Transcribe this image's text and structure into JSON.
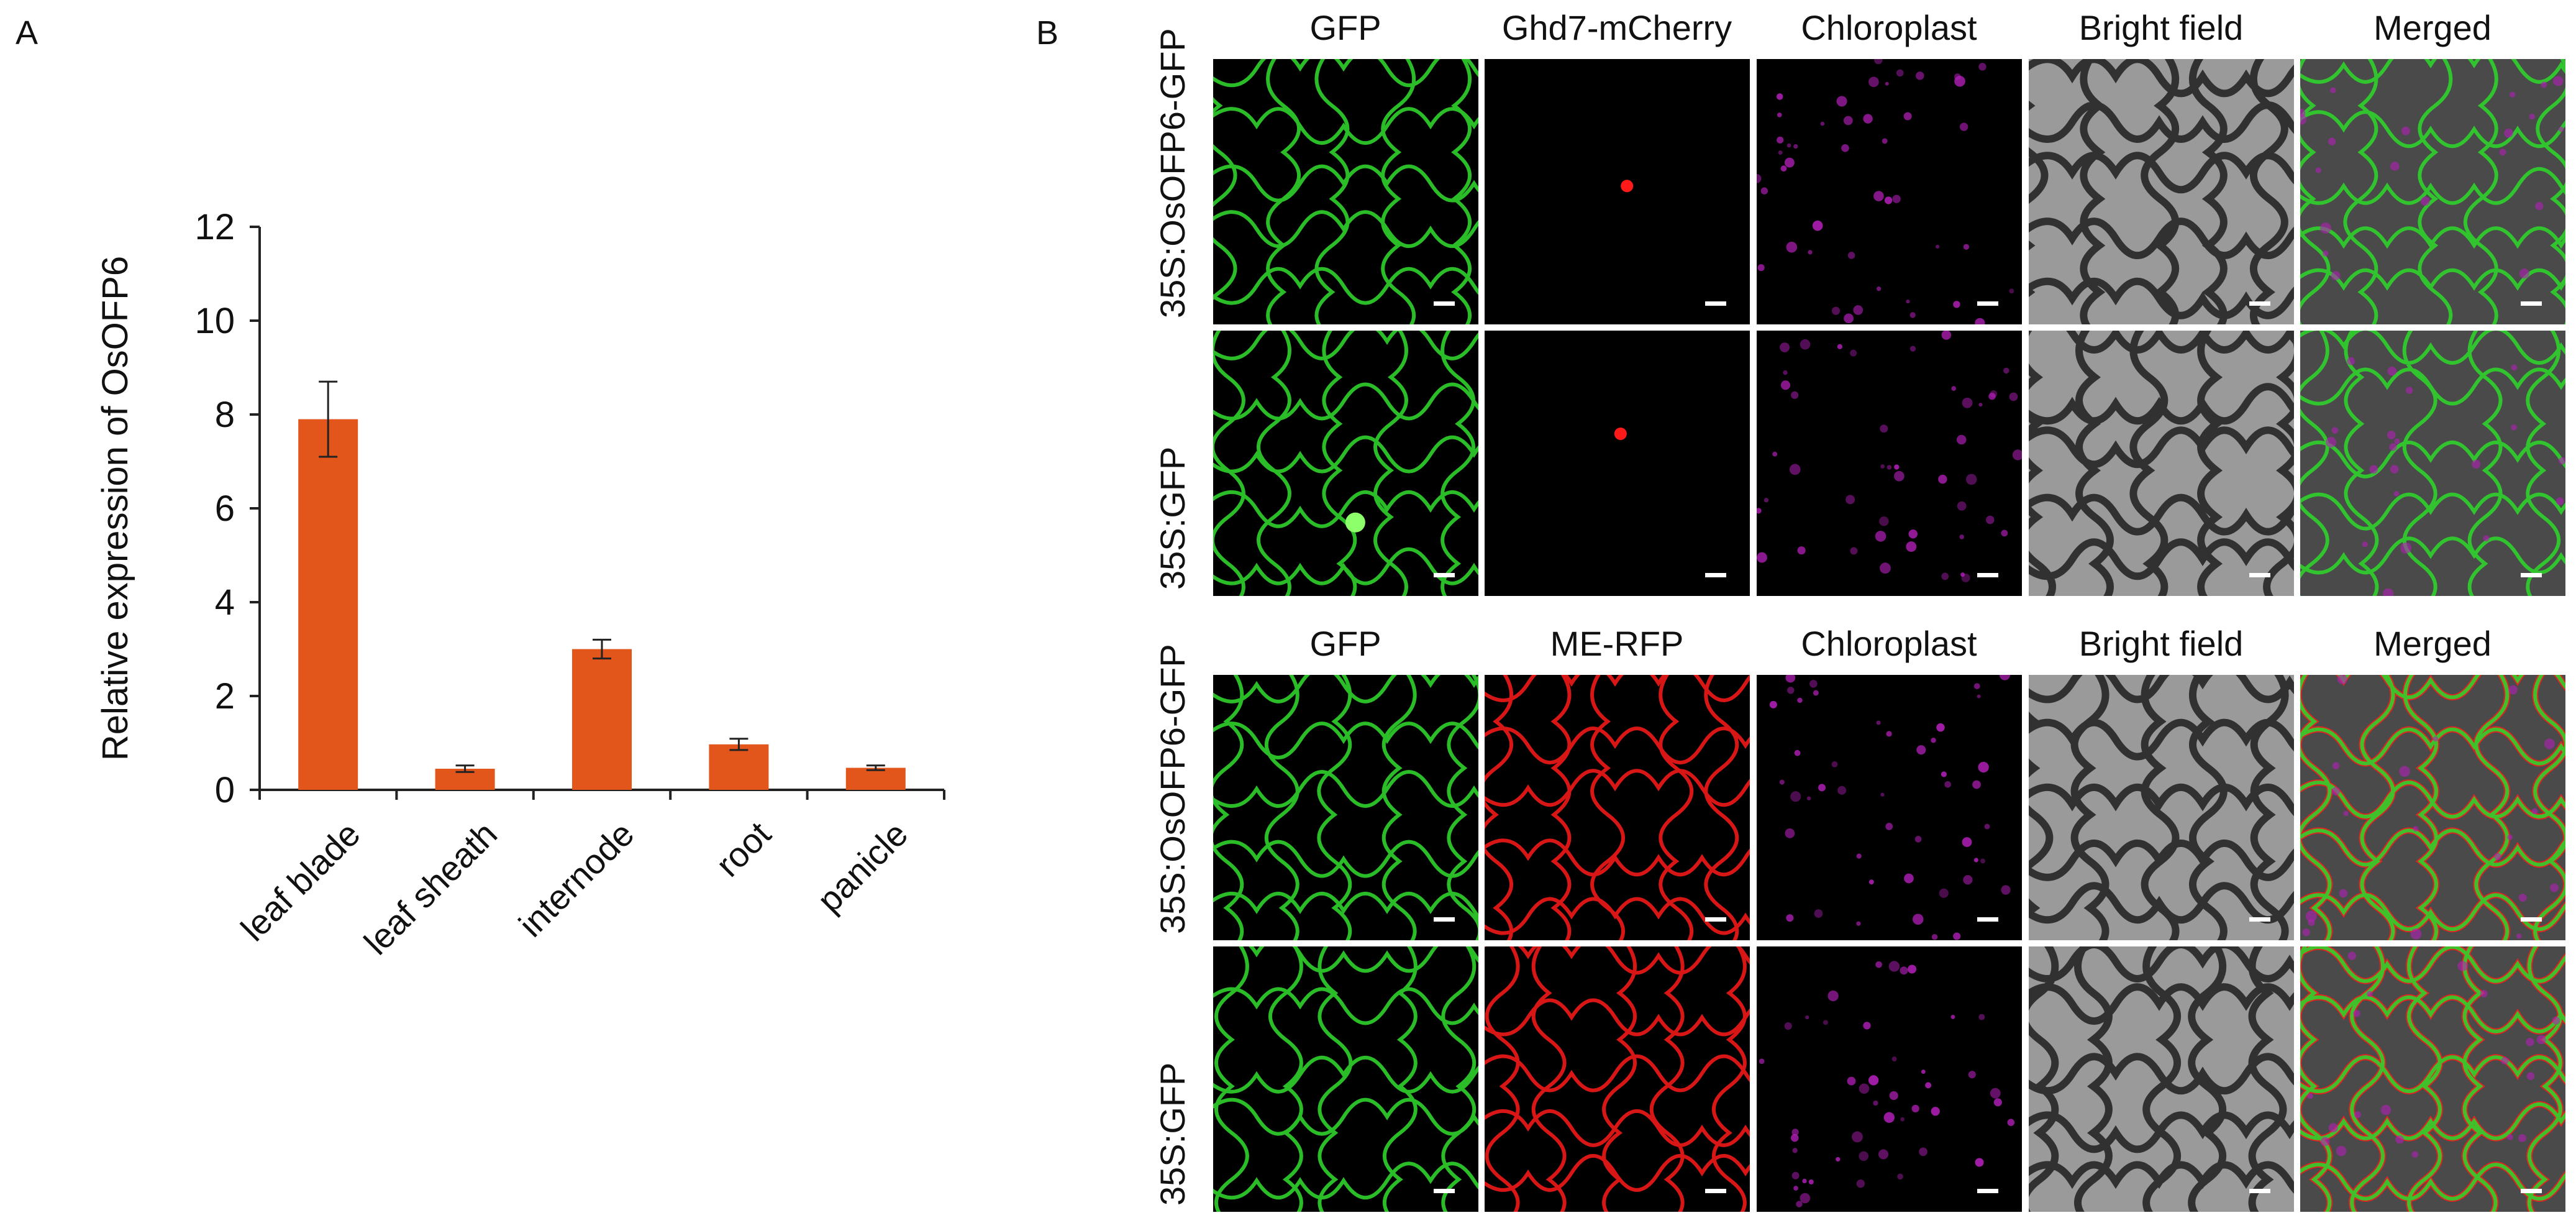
{
  "panels": {
    "a_label": "A",
    "b_label": "B"
  },
  "chart_data": {
    "type": "bar",
    "categories": [
      "leaf blade",
      "leaf sheath",
      "internode",
      "root",
      "panicle"
    ],
    "values": [
      7.9,
      0.45,
      3.0,
      0.97,
      0.47
    ],
    "errors": [
      0.8,
      0.07,
      0.2,
      0.12,
      0.05
    ],
    "ylabel": "Relative expression of OsOFP6",
    "ylim": [
      0,
      12
    ],
    "yticks": [
      0,
      2,
      4,
      6,
      8,
      10,
      12
    ],
    "bar_color": "#e2561c",
    "grid": false
  },
  "microscopy": {
    "groups": [
      {
        "columns": [
          "GFP",
          "Ghd7-mCherry",
          "Chloroplast",
          "Bright field",
          "Merged"
        ],
        "rows": [
          "35S:OsOFP6-GFP",
          "35S:GFP"
        ]
      },
      {
        "columns": [
          "GFP",
          "ME-RFP",
          "Chloroplast",
          "Bright field",
          "Merged"
        ],
        "rows": [
          "35S:OsOFP6-GFP",
          "35S:GFP"
        ]
      }
    ],
    "colors": {
      "gfp": "#2fd12b",
      "mcherry": "#ff1a1a",
      "chloroplast": "#b21fb8",
      "bright": "#9a9a9a"
    }
  }
}
